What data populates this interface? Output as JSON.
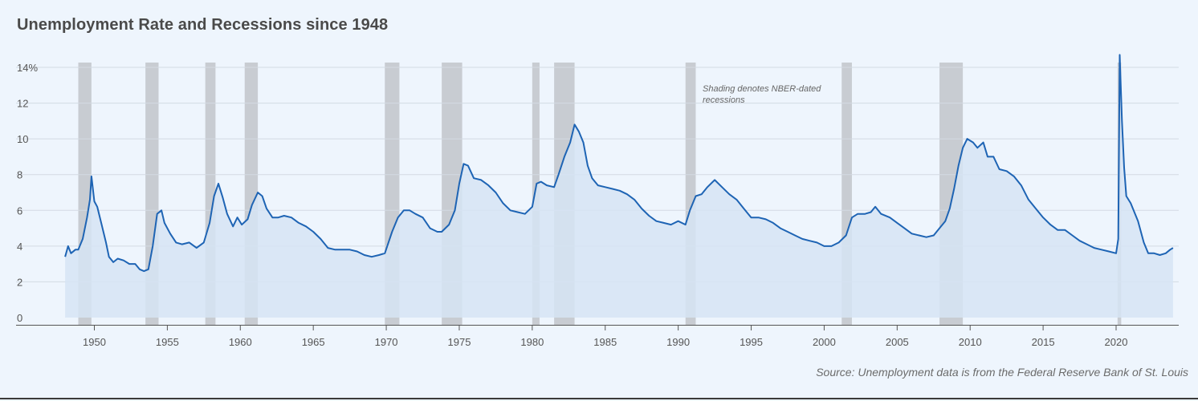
{
  "chart_data": {
    "type": "area",
    "title": "Unemployment Rate and Recessions since 1948",
    "note": "Shading denotes NBER-dated recessions",
    "source": "Source: Unemployment data is from the Federal Reserve Bank of St. Louis",
    "xlim": [
      1948,
      2024
    ],
    "ylim": [
      0,
      15
    ],
    "y_ticks": [
      {
        "value": 0,
        "label": "0"
      },
      {
        "value": 2,
        "label": "2"
      },
      {
        "value": 4,
        "label": "4"
      },
      {
        "value": 6,
        "label": "6"
      },
      {
        "value": 8,
        "label": "8"
      },
      {
        "value": 10,
        "label": "10"
      },
      {
        "value": 12,
        "label": "12"
      },
      {
        "value": 14,
        "label": "14%"
      }
    ],
    "x_ticks": [
      "1950",
      "1955",
      "1960",
      "1965",
      "1970",
      "1975",
      "1980",
      "1985",
      "1990",
      "1995",
      "2000",
      "2005",
      "2010",
      "2015",
      "2020"
    ],
    "grid": true,
    "colors": {
      "line": "#1e64b4",
      "area": "#d6e4f5",
      "recession": "#c8ccd2"
    },
    "recessions": [
      [
        1948.9,
        1949.8
      ],
      [
        1953.5,
        1954.4
      ],
      [
        1957.6,
        1958.3
      ],
      [
        1960.3,
        1961.2
      ],
      [
        1969.9,
        1970.9
      ],
      [
        1973.8,
        1975.2
      ],
      [
        1980.0,
        1980.5
      ],
      [
        1981.5,
        1982.9
      ],
      [
        1990.5,
        1991.2
      ],
      [
        2001.2,
        2001.9
      ],
      [
        2007.9,
        2009.5
      ],
      [
        2020.1,
        2020.35
      ]
    ],
    "series": [
      {
        "values": [
          [
            1948.0,
            3.4
          ],
          [
            1948.2,
            4.0
          ],
          [
            1948.4,
            3.6
          ],
          [
            1948.7,
            3.8
          ],
          [
            1948.9,
            3.8
          ],
          [
            1949.2,
            4.4
          ],
          [
            1949.5,
            5.6
          ],
          [
            1949.7,
            6.6
          ],
          [
            1949.8,
            7.9
          ],
          [
            1950.0,
            6.5
          ],
          [
            1950.2,
            6.2
          ],
          [
            1950.5,
            5.2
          ],
          [
            1950.8,
            4.2
          ],
          [
            1951.0,
            3.4
          ],
          [
            1951.3,
            3.1
          ],
          [
            1951.6,
            3.3
          ],
          [
            1952.0,
            3.2
          ],
          [
            1952.4,
            3.0
          ],
          [
            1952.8,
            3.0
          ],
          [
            1953.1,
            2.7
          ],
          [
            1953.4,
            2.6
          ],
          [
            1953.7,
            2.7
          ],
          [
            1954.0,
            4.0
          ],
          [
            1954.3,
            5.8
          ],
          [
            1954.6,
            6.0
          ],
          [
            1954.8,
            5.3
          ],
          [
            1955.2,
            4.7
          ],
          [
            1955.6,
            4.2
          ],
          [
            1956.0,
            4.1
          ],
          [
            1956.5,
            4.2
          ],
          [
            1957.0,
            3.9
          ],
          [
            1957.5,
            4.2
          ],
          [
            1957.9,
            5.3
          ],
          [
            1958.2,
            6.8
          ],
          [
            1958.5,
            7.5
          ],
          [
            1958.8,
            6.7
          ],
          [
            1959.1,
            5.8
          ],
          [
            1959.5,
            5.1
          ],
          [
            1959.8,
            5.6
          ],
          [
            1960.1,
            5.2
          ],
          [
            1960.5,
            5.5
          ],
          [
            1960.8,
            6.3
          ],
          [
            1961.2,
            7.0
          ],
          [
            1961.5,
            6.8
          ],
          [
            1961.8,
            6.1
          ],
          [
            1962.2,
            5.6
          ],
          [
            1962.6,
            5.6
          ],
          [
            1963.0,
            5.7
          ],
          [
            1963.5,
            5.6
          ],
          [
            1964.0,
            5.3
          ],
          [
            1964.5,
            5.1
          ],
          [
            1965.0,
            4.8
          ],
          [
            1965.5,
            4.4
          ],
          [
            1966.0,
            3.9
          ],
          [
            1966.5,
            3.8
          ],
          [
            1967.0,
            3.8
          ],
          [
            1967.5,
            3.8
          ],
          [
            1968.0,
            3.7
          ],
          [
            1968.5,
            3.5
          ],
          [
            1969.0,
            3.4
          ],
          [
            1969.5,
            3.5
          ],
          [
            1969.9,
            3.6
          ],
          [
            1970.4,
            4.8
          ],
          [
            1970.8,
            5.6
          ],
          [
            1971.2,
            6.0
          ],
          [
            1971.6,
            6.0
          ],
          [
            1972.0,
            5.8
          ],
          [
            1972.5,
            5.6
          ],
          [
            1973.0,
            5.0
          ],
          [
            1973.5,
            4.8
          ],
          [
            1973.8,
            4.8
          ],
          [
            1974.3,
            5.2
          ],
          [
            1974.7,
            6.0
          ],
          [
            1975.0,
            7.5
          ],
          [
            1975.3,
            8.6
          ],
          [
            1975.6,
            8.5
          ],
          [
            1976.0,
            7.8
          ],
          [
            1976.5,
            7.7
          ],
          [
            1977.0,
            7.4
          ],
          [
            1977.5,
            7.0
          ],
          [
            1978.0,
            6.4
          ],
          [
            1978.5,
            6.0
          ],
          [
            1979.0,
            5.9
          ],
          [
            1979.5,
            5.8
          ],
          [
            1980.0,
            6.2
          ],
          [
            1980.3,
            7.5
          ],
          [
            1980.6,
            7.6
          ],
          [
            1981.0,
            7.4
          ],
          [
            1981.5,
            7.3
          ],
          [
            1981.8,
            8.0
          ],
          [
            1982.2,
            9.0
          ],
          [
            1982.6,
            9.8
          ],
          [
            1982.9,
            10.8
          ],
          [
            1983.2,
            10.4
          ],
          [
            1983.5,
            9.8
          ],
          [
            1983.8,
            8.5
          ],
          [
            1984.1,
            7.8
          ],
          [
            1984.5,
            7.4
          ],
          [
            1985.0,
            7.3
          ],
          [
            1985.5,
            7.2
          ],
          [
            1986.0,
            7.1
          ],
          [
            1986.5,
            6.9
          ],
          [
            1987.0,
            6.6
          ],
          [
            1987.5,
            6.1
          ],
          [
            1988.0,
            5.7
          ],
          [
            1988.5,
            5.4
          ],
          [
            1989.0,
            5.3
          ],
          [
            1989.5,
            5.2
          ],
          [
            1990.0,
            5.4
          ],
          [
            1990.5,
            5.2
          ],
          [
            1990.8,
            6.0
          ],
          [
            1991.2,
            6.8
          ],
          [
            1991.6,
            6.9
          ],
          [
            1992.0,
            7.3
          ],
          [
            1992.5,
            7.7
          ],
          [
            1993.0,
            7.3
          ],
          [
            1993.5,
            6.9
          ],
          [
            1994.0,
            6.6
          ],
          [
            1994.5,
            6.1
          ],
          [
            1995.0,
            5.6
          ],
          [
            1995.5,
            5.6
          ],
          [
            1996.0,
            5.5
          ],
          [
            1996.5,
            5.3
          ],
          [
            1997.0,
            5.0
          ],
          [
            1997.5,
            4.8
          ],
          [
            1998.0,
            4.6
          ],
          [
            1998.5,
            4.4
          ],
          [
            1999.0,
            4.3
          ],
          [
            1999.5,
            4.2
          ],
          [
            2000.0,
            4.0
          ],
          [
            2000.5,
            4.0
          ],
          [
            2001.0,
            4.2
          ],
          [
            2001.5,
            4.6
          ],
          [
            2001.9,
            5.6
          ],
          [
            2002.3,
            5.8
          ],
          [
            2002.8,
            5.8
          ],
          [
            2003.2,
            5.9
          ],
          [
            2003.5,
            6.2
          ],
          [
            2003.9,
            5.8
          ],
          [
            2004.5,
            5.6
          ],
          [
            2005.0,
            5.3
          ],
          [
            2005.5,
            5.0
          ],
          [
            2006.0,
            4.7
          ],
          [
            2006.5,
            4.6
          ],
          [
            2007.0,
            4.5
          ],
          [
            2007.5,
            4.6
          ],
          [
            2007.9,
            5.0
          ],
          [
            2008.3,
            5.4
          ],
          [
            2008.6,
            6.1
          ],
          [
            2008.9,
            7.2
          ],
          [
            2009.2,
            8.5
          ],
          [
            2009.5,
            9.5
          ],
          [
            2009.8,
            10.0
          ],
          [
            2010.2,
            9.8
          ],
          [
            2010.5,
            9.5
          ],
          [
            2010.9,
            9.8
          ],
          [
            2011.2,
            9.0
          ],
          [
            2011.6,
            9.0
          ],
          [
            2012.0,
            8.3
          ],
          [
            2012.5,
            8.2
          ],
          [
            2013.0,
            7.9
          ],
          [
            2013.5,
            7.4
          ],
          [
            2014.0,
            6.6
          ],
          [
            2014.5,
            6.1
          ],
          [
            2015.0,
            5.6
          ],
          [
            2015.5,
            5.2
          ],
          [
            2016.0,
            4.9
          ],
          [
            2016.5,
            4.9
          ],
          [
            2017.0,
            4.6
          ],
          [
            2017.5,
            4.3
          ],
          [
            2018.0,
            4.1
          ],
          [
            2018.5,
            3.9
          ],
          [
            2019.0,
            3.8
          ],
          [
            2019.5,
            3.7
          ],
          [
            2020.0,
            3.6
          ],
          [
            2020.15,
            4.4
          ],
          [
            2020.25,
            14.7
          ],
          [
            2020.4,
            11.0
          ],
          [
            2020.55,
            8.4
          ],
          [
            2020.7,
            6.8
          ],
          [
            2021.0,
            6.4
          ],
          [
            2021.5,
            5.4
          ],
          [
            2021.9,
            4.2
          ],
          [
            2022.2,
            3.6
          ],
          [
            2022.6,
            3.6
          ],
          [
            2023.0,
            3.5
          ],
          [
            2023.4,
            3.6
          ],
          [
            2023.7,
            3.8
          ],
          [
            2023.9,
            3.9
          ]
        ]
      }
    ]
  }
}
